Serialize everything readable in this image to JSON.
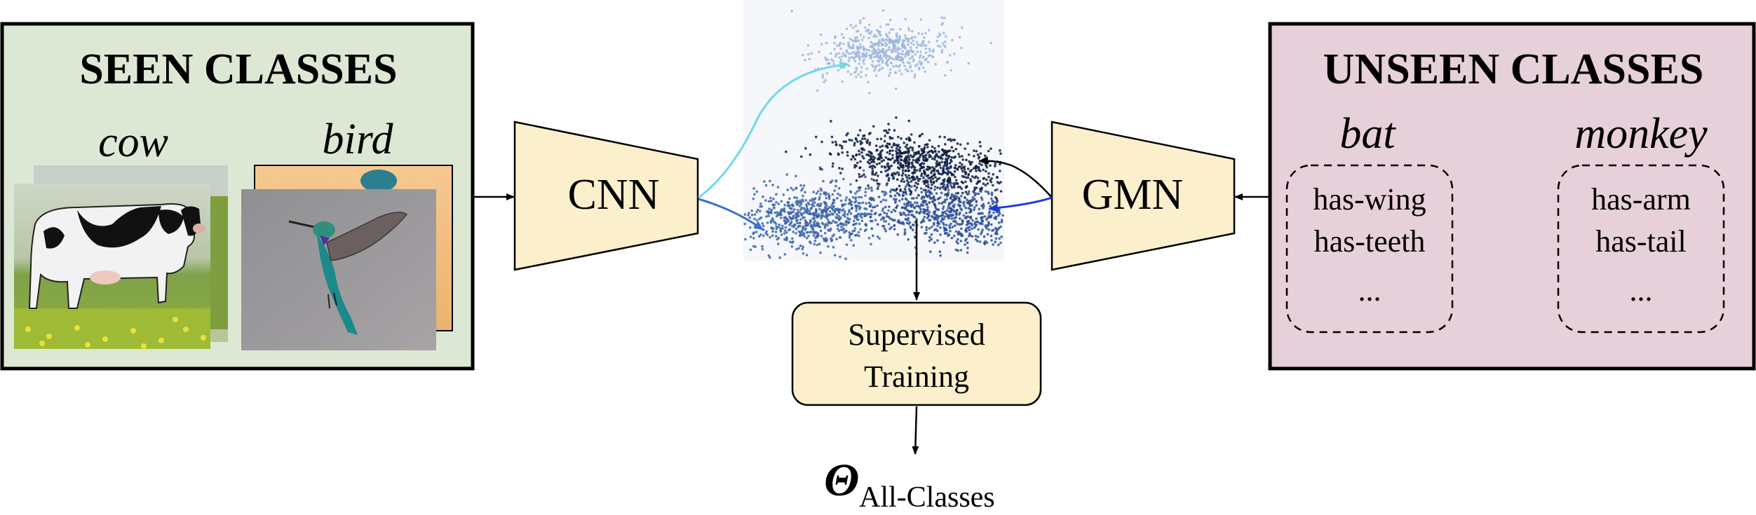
{
  "seen": {
    "title": "SEEN CLASSES",
    "classes": [
      {
        "name": "cow",
        "image": "cow-photo"
      },
      {
        "name": "bird",
        "image": "hummingbird-photo"
      }
    ]
  },
  "unseen": {
    "title": "UNSEEN CLASSES",
    "classes": [
      {
        "name": "bat",
        "attributes": [
          "has-wing",
          "has-teeth",
          "..."
        ]
      },
      {
        "name": "monkey",
        "attributes": [
          "has-arm",
          "has-tail",
          "..."
        ]
      }
    ]
  },
  "networks": {
    "cnn": "CNN",
    "gmn": "GMN"
  },
  "training": {
    "line1": "Supervised",
    "line2": "Training"
  },
  "output": {
    "symbol": "Θ",
    "subscript": "All-Classes"
  },
  "colors": {
    "seen_box": "#dde8d4",
    "unseen_box": "#e6d0da",
    "network_fill": "#fbf0cb",
    "cluster_light": "#9fb7dc",
    "cluster_mid": "#3c64a8",
    "cluster_dark": "#0c1c40"
  }
}
